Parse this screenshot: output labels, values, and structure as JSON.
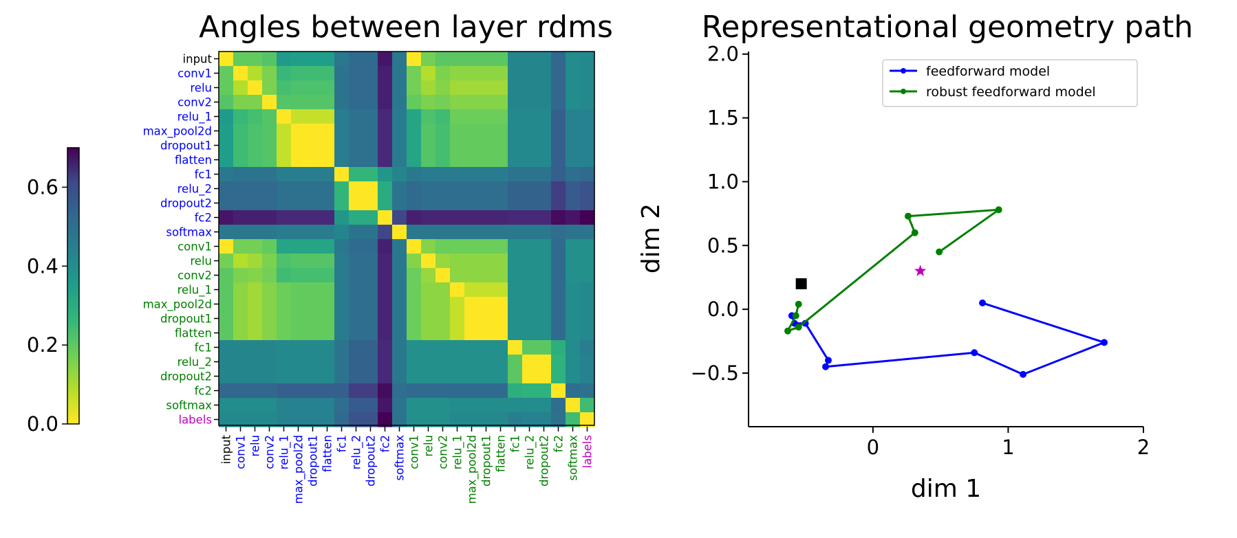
{
  "figure": {
    "chart_data": [
      {
        "type": "heatmap",
        "title": "Angles between layer rdms",
        "labels": [
          "input",
          "conv1",
          "relu",
          "conv2",
          "relu_1",
          "max_pool2d",
          "dropout1",
          "flatten",
          "fc1",
          "relu_2",
          "dropout2",
          "fc2",
          "softmax",
          "conv1",
          "relu",
          "conv2",
          "relu_1",
          "max_pool2d",
          "dropout1",
          "flatten",
          "fc1",
          "relu_2",
          "dropout2",
          "fc2",
          "softmax",
          "labels"
        ],
        "label_colors": [
          "#000000",
          "#0000ff",
          "#0000ff",
          "#0000ff",
          "#0000ff",
          "#0000ff",
          "#0000ff",
          "#0000ff",
          "#0000ff",
          "#0000ff",
          "#0000ff",
          "#0000ff",
          "#0000ff",
          "#008000",
          "#008000",
          "#008000",
          "#008000",
          "#008000",
          "#008000",
          "#008000",
          "#008000",
          "#008000",
          "#008000",
          "#008000",
          "#008000",
          "#bf00bf"
        ],
        "colormap": "viridis_r",
        "colorbar": {
          "min": 0.0,
          "max": 0.7,
          "ticks": [
            0.0,
            0.2,
            0.4,
            0.6
          ],
          "tick_labels": [
            "0.0",
            "0.2",
            "0.4",
            "0.6"
          ]
        },
        "values": [
          [
            0.0,
            0.17,
            0.17,
            0.19,
            0.32,
            0.31,
            0.31,
            0.31,
            0.42,
            0.46,
            0.46,
            0.66,
            0.42,
            0.0,
            0.15,
            0.18,
            0.18,
            0.18,
            0.18,
            0.18,
            0.38,
            0.38,
            0.38,
            0.47,
            0.36,
            0.37
          ],
          [
            0.17,
            0.0,
            0.08,
            0.14,
            0.23,
            0.22,
            0.22,
            0.22,
            0.43,
            0.46,
            0.46,
            0.64,
            0.42,
            0.15,
            0.08,
            0.14,
            0.12,
            0.12,
            0.12,
            0.12,
            0.38,
            0.38,
            0.38,
            0.47,
            0.36,
            0.37
          ],
          [
            0.17,
            0.08,
            0.0,
            0.14,
            0.21,
            0.2,
            0.2,
            0.2,
            0.43,
            0.46,
            0.46,
            0.64,
            0.42,
            0.15,
            0.1,
            0.13,
            0.1,
            0.1,
            0.1,
            0.1,
            0.38,
            0.38,
            0.38,
            0.47,
            0.36,
            0.37
          ],
          [
            0.19,
            0.14,
            0.14,
            0.0,
            0.19,
            0.19,
            0.19,
            0.19,
            0.43,
            0.46,
            0.46,
            0.64,
            0.42,
            0.17,
            0.14,
            0.15,
            0.13,
            0.13,
            0.13,
            0.13,
            0.38,
            0.38,
            0.38,
            0.47,
            0.36,
            0.37
          ],
          [
            0.32,
            0.23,
            0.21,
            0.19,
            0.0,
            0.06,
            0.06,
            0.06,
            0.4,
            0.44,
            0.44,
            0.62,
            0.41,
            0.29,
            0.2,
            0.22,
            0.16,
            0.16,
            0.16,
            0.16,
            0.37,
            0.37,
            0.37,
            0.49,
            0.39,
            0.39
          ],
          [
            0.31,
            0.22,
            0.2,
            0.19,
            0.06,
            0.0,
            0.0,
            0.0,
            0.4,
            0.44,
            0.44,
            0.62,
            0.41,
            0.29,
            0.19,
            0.21,
            0.17,
            0.17,
            0.17,
            0.17,
            0.37,
            0.37,
            0.37,
            0.49,
            0.39,
            0.39
          ],
          [
            0.31,
            0.22,
            0.2,
            0.19,
            0.06,
            0.0,
            0.0,
            0.0,
            0.4,
            0.44,
            0.44,
            0.62,
            0.41,
            0.29,
            0.19,
            0.21,
            0.17,
            0.17,
            0.17,
            0.17,
            0.37,
            0.37,
            0.37,
            0.49,
            0.39,
            0.39
          ],
          [
            0.31,
            0.22,
            0.2,
            0.19,
            0.06,
            0.0,
            0.0,
            0.0,
            0.4,
            0.44,
            0.44,
            0.62,
            0.41,
            0.29,
            0.19,
            0.21,
            0.17,
            0.17,
            0.17,
            0.17,
            0.37,
            0.37,
            0.37,
            0.49,
            0.39,
            0.39
          ],
          [
            0.42,
            0.43,
            0.43,
            0.43,
            0.4,
            0.4,
            0.4,
            0.4,
            0.0,
            0.24,
            0.24,
            0.33,
            0.38,
            0.42,
            0.41,
            0.41,
            0.41,
            0.41,
            0.41,
            0.41,
            0.43,
            0.43,
            0.43,
            0.49,
            0.45,
            0.46
          ],
          [
            0.46,
            0.46,
            0.46,
            0.46,
            0.44,
            0.44,
            0.44,
            0.44,
            0.24,
            0.0,
            0.0,
            0.27,
            0.43,
            0.46,
            0.45,
            0.45,
            0.45,
            0.45,
            0.45,
            0.45,
            0.48,
            0.48,
            0.48,
            0.57,
            0.5,
            0.52
          ],
          [
            0.46,
            0.46,
            0.46,
            0.46,
            0.44,
            0.44,
            0.44,
            0.44,
            0.24,
            0.0,
            0.0,
            0.27,
            0.43,
            0.46,
            0.45,
            0.45,
            0.45,
            0.45,
            0.45,
            0.45,
            0.48,
            0.48,
            0.48,
            0.57,
            0.5,
            0.52
          ],
          [
            0.66,
            0.64,
            0.64,
            0.64,
            0.62,
            0.62,
            0.62,
            0.62,
            0.33,
            0.27,
            0.27,
            0.0,
            0.55,
            0.64,
            0.63,
            0.63,
            0.63,
            0.63,
            0.63,
            0.63,
            0.62,
            0.62,
            0.62,
            0.68,
            0.66,
            0.7
          ],
          [
            0.42,
            0.42,
            0.42,
            0.42,
            0.41,
            0.41,
            0.41,
            0.41,
            0.38,
            0.43,
            0.43,
            0.55,
            0.0,
            0.42,
            0.42,
            0.42,
            0.42,
            0.42,
            0.42,
            0.42,
            0.42,
            0.42,
            0.42,
            0.45,
            0.43,
            0.43
          ],
          [
            0.0,
            0.15,
            0.15,
            0.17,
            0.29,
            0.29,
            0.29,
            0.29,
            0.42,
            0.46,
            0.46,
            0.64,
            0.42,
            0.0,
            0.13,
            0.16,
            0.16,
            0.16,
            0.16,
            0.16,
            0.35,
            0.35,
            0.35,
            0.46,
            0.35,
            0.35
          ],
          [
            0.15,
            0.08,
            0.1,
            0.14,
            0.2,
            0.19,
            0.19,
            0.19,
            0.41,
            0.45,
            0.45,
            0.63,
            0.42,
            0.13,
            0.0,
            0.11,
            0.12,
            0.12,
            0.12,
            0.12,
            0.35,
            0.35,
            0.35,
            0.46,
            0.35,
            0.35
          ],
          [
            0.18,
            0.14,
            0.13,
            0.15,
            0.22,
            0.21,
            0.21,
            0.21,
            0.41,
            0.45,
            0.45,
            0.63,
            0.42,
            0.16,
            0.11,
            0.0,
            0.12,
            0.12,
            0.12,
            0.12,
            0.35,
            0.35,
            0.35,
            0.46,
            0.35,
            0.35
          ],
          [
            0.18,
            0.12,
            0.1,
            0.13,
            0.16,
            0.17,
            0.17,
            0.17,
            0.41,
            0.45,
            0.45,
            0.63,
            0.42,
            0.16,
            0.12,
            0.12,
            0.0,
            0.06,
            0.06,
            0.06,
            0.35,
            0.35,
            0.35,
            0.46,
            0.36,
            0.37
          ],
          [
            0.18,
            0.12,
            0.1,
            0.13,
            0.16,
            0.17,
            0.17,
            0.17,
            0.41,
            0.45,
            0.45,
            0.63,
            0.42,
            0.16,
            0.12,
            0.12,
            0.06,
            0.0,
            0.0,
            0.0,
            0.35,
            0.35,
            0.35,
            0.46,
            0.36,
            0.37
          ],
          [
            0.18,
            0.12,
            0.1,
            0.13,
            0.16,
            0.17,
            0.17,
            0.17,
            0.41,
            0.45,
            0.45,
            0.63,
            0.42,
            0.16,
            0.12,
            0.12,
            0.06,
            0.0,
            0.0,
            0.0,
            0.35,
            0.35,
            0.35,
            0.46,
            0.36,
            0.37
          ],
          [
            0.18,
            0.12,
            0.1,
            0.13,
            0.16,
            0.17,
            0.17,
            0.17,
            0.41,
            0.45,
            0.45,
            0.63,
            0.42,
            0.16,
            0.12,
            0.12,
            0.06,
            0.0,
            0.0,
            0.0,
            0.35,
            0.35,
            0.35,
            0.46,
            0.36,
            0.37
          ],
          [
            0.38,
            0.38,
            0.38,
            0.38,
            0.37,
            0.37,
            0.37,
            0.37,
            0.43,
            0.48,
            0.48,
            0.62,
            0.42,
            0.35,
            0.35,
            0.35,
            0.35,
            0.35,
            0.35,
            0.35,
            0.0,
            0.18,
            0.18,
            0.26,
            0.36,
            0.4
          ],
          [
            0.38,
            0.38,
            0.38,
            0.38,
            0.37,
            0.37,
            0.37,
            0.37,
            0.43,
            0.48,
            0.48,
            0.62,
            0.42,
            0.35,
            0.35,
            0.35,
            0.35,
            0.35,
            0.35,
            0.35,
            0.18,
            0.0,
            0.0,
            0.25,
            0.36,
            0.39
          ],
          [
            0.38,
            0.38,
            0.38,
            0.38,
            0.37,
            0.37,
            0.37,
            0.37,
            0.43,
            0.48,
            0.48,
            0.62,
            0.42,
            0.35,
            0.35,
            0.35,
            0.35,
            0.35,
            0.35,
            0.35,
            0.18,
            0.0,
            0.0,
            0.25,
            0.36,
            0.39
          ],
          [
            0.47,
            0.47,
            0.47,
            0.47,
            0.49,
            0.49,
            0.49,
            0.49,
            0.49,
            0.57,
            0.57,
            0.68,
            0.45,
            0.46,
            0.46,
            0.46,
            0.46,
            0.46,
            0.46,
            0.46,
            0.26,
            0.25,
            0.25,
            0.0,
            0.45,
            0.44
          ],
          [
            0.36,
            0.36,
            0.36,
            0.36,
            0.39,
            0.39,
            0.39,
            0.39,
            0.45,
            0.5,
            0.5,
            0.66,
            0.43,
            0.35,
            0.35,
            0.35,
            0.36,
            0.36,
            0.36,
            0.36,
            0.36,
            0.36,
            0.36,
            0.45,
            0.0,
            0.22
          ],
          [
            0.37,
            0.37,
            0.37,
            0.37,
            0.39,
            0.39,
            0.39,
            0.39,
            0.46,
            0.52,
            0.52,
            0.7,
            0.43,
            0.35,
            0.35,
            0.35,
            0.37,
            0.37,
            0.37,
            0.37,
            0.4,
            0.39,
            0.39,
            0.44,
            0.22,
            0.0
          ]
        ]
      },
      {
        "type": "line",
        "title": "Representational geometry path",
        "xlabel": "dim 1",
        "ylabel": "dim 2",
        "xlim": [
          -0.92,
          2.0
        ],
        "ylim": [
          -0.92,
          2.02
        ],
        "xticks": [
          0,
          1,
          2
        ],
        "xtick_labels": [
          "0",
          "1",
          "2"
        ],
        "yticks": [
          -0.5,
          0.0,
          0.5,
          1.0,
          1.5,
          2.0
        ],
        "ytick_labels": [
          "−0.5",
          "0.0",
          "0.5",
          "1.0",
          "1.5",
          "2.0"
        ],
        "legend_position": "top-right",
        "series": [
          {
            "name": "feedforward model",
            "color": "#0000ff",
            "points": [
              [
                -0.6,
                -0.05
              ],
              [
                -0.58,
                -0.11
              ],
              [
                -0.5,
                -0.11
              ],
              [
                -0.33,
                -0.4
              ],
              [
                -0.35,
                -0.45
              ],
              [
                0.75,
                -0.34
              ],
              [
                1.11,
                -0.51
              ],
              [
                1.71,
                -0.26
              ],
              [
                0.81,
                0.05
              ]
            ]
          },
          {
            "name": "robust feedforward model",
            "color": "#008000",
            "points": [
              [
                -0.55,
                0.04
              ],
              [
                -0.57,
                -0.05
              ],
              [
                -0.63,
                -0.17
              ],
              [
                -0.55,
                -0.14
              ],
              [
                0.31,
                0.6
              ],
              [
                0.26,
                0.73
              ],
              [
                0.93,
                0.78
              ],
              [
                0.49,
                0.45
              ]
            ]
          }
        ],
        "markers": [
          {
            "shape": "square",
            "color": "#000000",
            "x": -0.53,
            "y": 0.2
          },
          {
            "shape": "star",
            "color": "#bf00bf",
            "x": 0.35,
            "y": 0.3
          }
        ]
      }
    ]
  }
}
